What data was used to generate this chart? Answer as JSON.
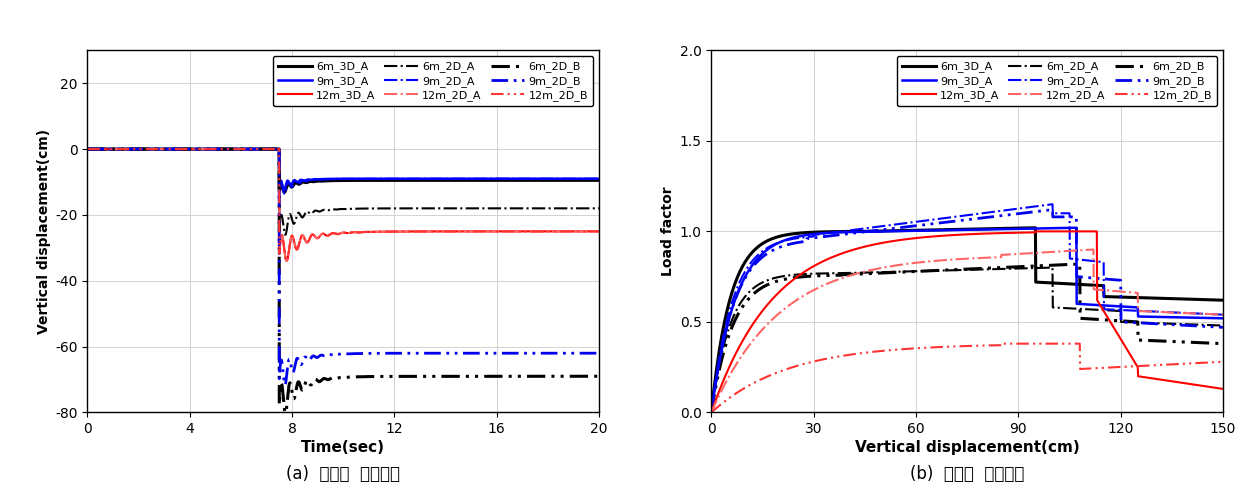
{
  "plot_a": {
    "caption": "(a)  비선형  동적해석",
    "xlabel": "Time(sec)",
    "ylabel": "Vertical displacement(cm)",
    "xlim": [
      0,
      20
    ],
    "ylim": [
      -80,
      30
    ],
    "xticks": [
      0,
      4,
      8,
      12,
      16,
      20
    ],
    "yticks": [
      -80,
      -60,
      -40,
      -20,
      0,
      20
    ],
    "collapse_time": 7.5,
    "series": [
      {
        "label": "6m_3D_A",
        "color": "#000000",
        "lw": 2.2,
        "ls": "solid",
        "settle": -9.5,
        "peak": -13.0,
        "osc": 2.0,
        "freq": 3.5,
        "dec": 2.5
      },
      {
        "label": "9m_3D_A",
        "color": "#0000FF",
        "lw": 1.8,
        "ls": "solid",
        "settle": -9.0,
        "peak": -12.0,
        "osc": 2.5,
        "freq": 3.8,
        "dec": 2.8
      },
      {
        "label": "12m_3D_A",
        "color": "#FF0000",
        "lw": 1.5,
        "ls": "solid",
        "settle": -25.0,
        "peak": -32.0,
        "osc": 6.0,
        "freq": 2.5,
        "dec": 1.5
      },
      {
        "label": "6m_2D_A",
        "color": "#000000",
        "lw": 1.5,
        "ls": "dashdot",
        "settle": -18.0,
        "peak": -25.0,
        "osc": 5.0,
        "freq": 3.0,
        "dec": 2.0
      },
      {
        "label": "9m_2D_A",
        "color": "#0000FF",
        "lw": 1.5,
        "ls": "dashdot",
        "settle": -9.0,
        "peak": -13.0,
        "osc": 3.0,
        "freq": 3.5,
        "dec": 2.5
      },
      {
        "label": "12m_2D_A",
        "color": "#FF6666",
        "lw": 1.5,
        "ls": "dashdot",
        "settle": -25.0,
        "peak": -32.0,
        "osc": 6.0,
        "freq": 2.5,
        "dec": 1.5
      },
      {
        "label": "6m_2D_B",
        "color": "#000000",
        "lw": 2.2,
        "ls": "dashdotdot",
        "settle": -69.0,
        "peak": -78.0,
        "osc": 7.0,
        "freq": 3.0,
        "dec": 1.8
      },
      {
        "label": "9m_2D_B",
        "color": "#0000EE",
        "lw": 2.0,
        "ls": "dashdotdot",
        "settle": -62.0,
        "peak": -70.0,
        "osc": 6.0,
        "freq": 3.2,
        "dec": 2.0
      },
      {
        "label": "12m_2D_B",
        "color": "#FF3333",
        "lw": 1.5,
        "ls": "dashdotdot",
        "settle": -25.0,
        "peak": -32.0,
        "osc": 6.0,
        "freq": 2.5,
        "dec": 1.5
      }
    ]
  },
  "plot_b": {
    "caption": "(b)  비선형  정적해석",
    "xlabel": "Vertical displacement(cm)",
    "ylabel": "Load factor",
    "xlim": [
      0,
      150
    ],
    "ylim": [
      0,
      2
    ],
    "xticks": [
      0,
      30,
      60,
      90,
      120,
      150
    ],
    "yticks": [
      0,
      0.5,
      1.0,
      1.5,
      2.0
    ]
  },
  "legend_rows": [
    [
      {
        "label": "6m_3D_A",
        "color": "#000000",
        "lw": 2.2,
        "ls": "solid"
      },
      {
        "label": "9m_3D_A",
        "color": "#0000FF",
        "lw": 1.8,
        "ls": "solid"
      },
      {
        "label": "12m_3D_A",
        "color": "#FF0000",
        "lw": 1.5,
        "ls": "solid"
      }
    ],
    [
      {
        "label": "6m_2D_A",
        "color": "#000000",
        "lw": 1.5,
        "ls": "dashdot"
      },
      {
        "label": "9m_2D_A",
        "color": "#0000FF",
        "lw": 1.5,
        "ls": "dashdot"
      },
      {
        "label": "12m_2D_A",
        "color": "#FF6666",
        "lw": 1.5,
        "ls": "dashdot"
      }
    ],
    [
      {
        "label": "6m_2D_B",
        "color": "#000000",
        "lw": 2.2,
        "ls": "dashdotdot"
      },
      {
        "label": "9m_2D_B",
        "color": "#0000EE",
        "lw": 2.0,
        "ls": "dashdotdot"
      },
      {
        "label": "12m_2D_B",
        "color": "#FF3333",
        "lw": 1.5,
        "ls": "dashdotdot"
      }
    ]
  ]
}
